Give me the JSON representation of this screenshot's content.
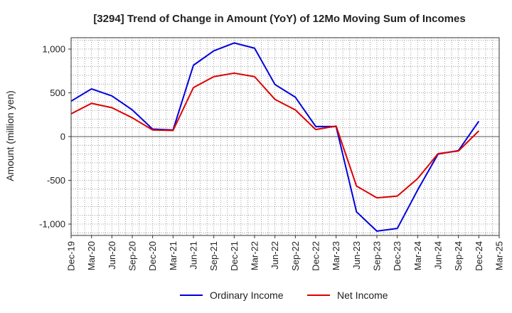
{
  "chart_data": {
    "type": "line",
    "title": "[3294]  Trend of Change in Amount (YoY) of 12Mo Moving Sum of Incomes",
    "xlabel": "",
    "ylabel": "Amount (million yen)",
    "ylim": [
      -1130,
      1130
    ],
    "yticks": [
      -1000,
      -500,
      0,
      500,
      1000
    ],
    "ytick_labels": [
      "-1,000",
      "-500",
      "0",
      "500",
      "1,000"
    ],
    "grid": true,
    "legend_position": "bottom-center",
    "categories": [
      "Dec-19",
      "Mar-20",
      "Jun-20",
      "Sep-20",
      "Dec-20",
      "Mar-21",
      "Jun-21",
      "Sep-21",
      "Dec-21",
      "Mar-22",
      "Jun-22",
      "Sep-22",
      "Dec-22",
      "Mar-23",
      "Jun-23",
      "Sep-23",
      "Dec-23",
      "Mar-24",
      "Jun-24",
      "Sep-24",
      "Dec-24",
      "Mar-25"
    ],
    "series": [
      {
        "name": "Ordinary Income",
        "color": "#0000dd",
        "values": [
          405,
          545,
          465,
          305,
          85,
          75,
          815,
          980,
          1070,
          1010,
          595,
          450,
          115,
          115,
          -860,
          -1080,
          -1050,
          -610,
          -200,
          -160,
          175,
          null
        ]
      },
      {
        "name": "Net Income",
        "color": "#dd0000",
        "values": [
          260,
          380,
          330,
          215,
          75,
          70,
          560,
          685,
          725,
          685,
          425,
          305,
          80,
          120,
          -565,
          -700,
          -680,
          -480,
          -195,
          -165,
          65,
          null
        ]
      }
    ]
  }
}
